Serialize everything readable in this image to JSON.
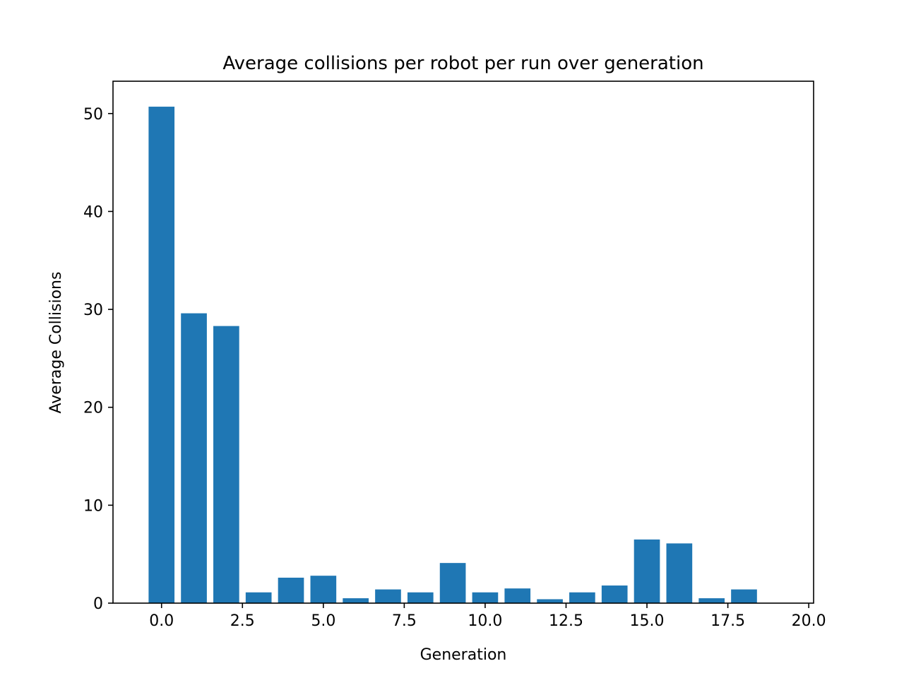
{
  "chart_data": {
    "type": "bar",
    "title": "Average collisions per robot per run over generation",
    "xlabel": "Generation",
    "ylabel": "Average Collisions",
    "x": [
      0,
      1,
      2,
      3,
      4,
      5,
      6,
      7,
      8,
      9,
      10,
      11,
      12,
      13,
      14,
      15,
      16,
      17,
      18,
      19
    ],
    "values": [
      50.7,
      29.6,
      28.3,
      1.1,
      2.6,
      2.8,
      0.5,
      1.4,
      1.1,
      4.1,
      1.1,
      1.5,
      0.4,
      1.1,
      1.8,
      6.5,
      6.1,
      0.5,
      1.4,
      0
    ],
    "xlim": [
      -1.5,
      20.15
    ],
    "ylim": [
      0,
      53.3
    ],
    "xticks": [
      0.0,
      2.5,
      5.0,
      7.5,
      10.0,
      12.5,
      15.0,
      17.5,
      20.0
    ],
    "xtick_labels": [
      "0.0",
      "2.5",
      "5.0",
      "7.5",
      "10.0",
      "12.5",
      "15.0",
      "17.5",
      "20.0"
    ],
    "yticks": [
      0,
      10,
      20,
      30,
      40,
      50
    ],
    "ytick_labels": [
      "0",
      "10",
      "20",
      "30",
      "40",
      "50"
    ],
    "bar_width": 0.8,
    "bar_color": "#1f77b4",
    "grid": false,
    "legend": "none"
  }
}
